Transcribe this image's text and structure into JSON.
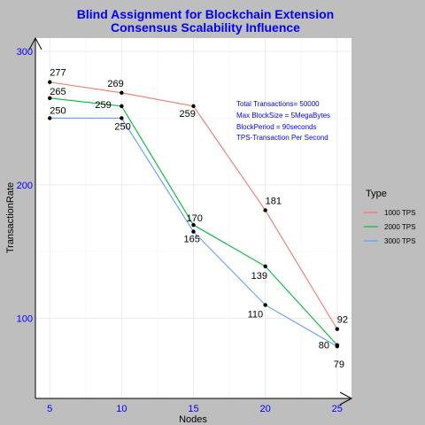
{
  "chart_data": {
    "type": "line",
    "title_line1": "Blind Assignment for Blockchain Extension",
    "title_line2": "Consensus Scalability Influence",
    "xlabel": "Nodes",
    "ylabel": "TransactionRate",
    "x": [
      5,
      10,
      15,
      20,
      25
    ],
    "xlim": [
      4,
      26
    ],
    "ylim": [
      40,
      310
    ],
    "yticks": [
      100,
      200,
      300
    ],
    "grid": true,
    "legend_title": "Type",
    "legend_position": "right",
    "series": [
      {
        "name": "1000 TPS",
        "color": "#f8766d",
        "values": [
          277,
          269,
          259,
          181,
          92
        ]
      },
      {
        "name": "2000 TPS",
        "color": "#00ba38",
        "values": [
          265,
          259,
          170,
          139,
          80
        ]
      },
      {
        "name": "3000 TPS",
        "color": "#619cff",
        "values": [
          250,
          250,
          165,
          110,
          79
        ]
      }
    ],
    "annotation": [
      "Total Transactions= 50000",
      "Max BlockSize = 5MegaBytes",
      "BlockPeriod = 90seconds",
      "TPS-Transaction Per Second"
    ]
  }
}
